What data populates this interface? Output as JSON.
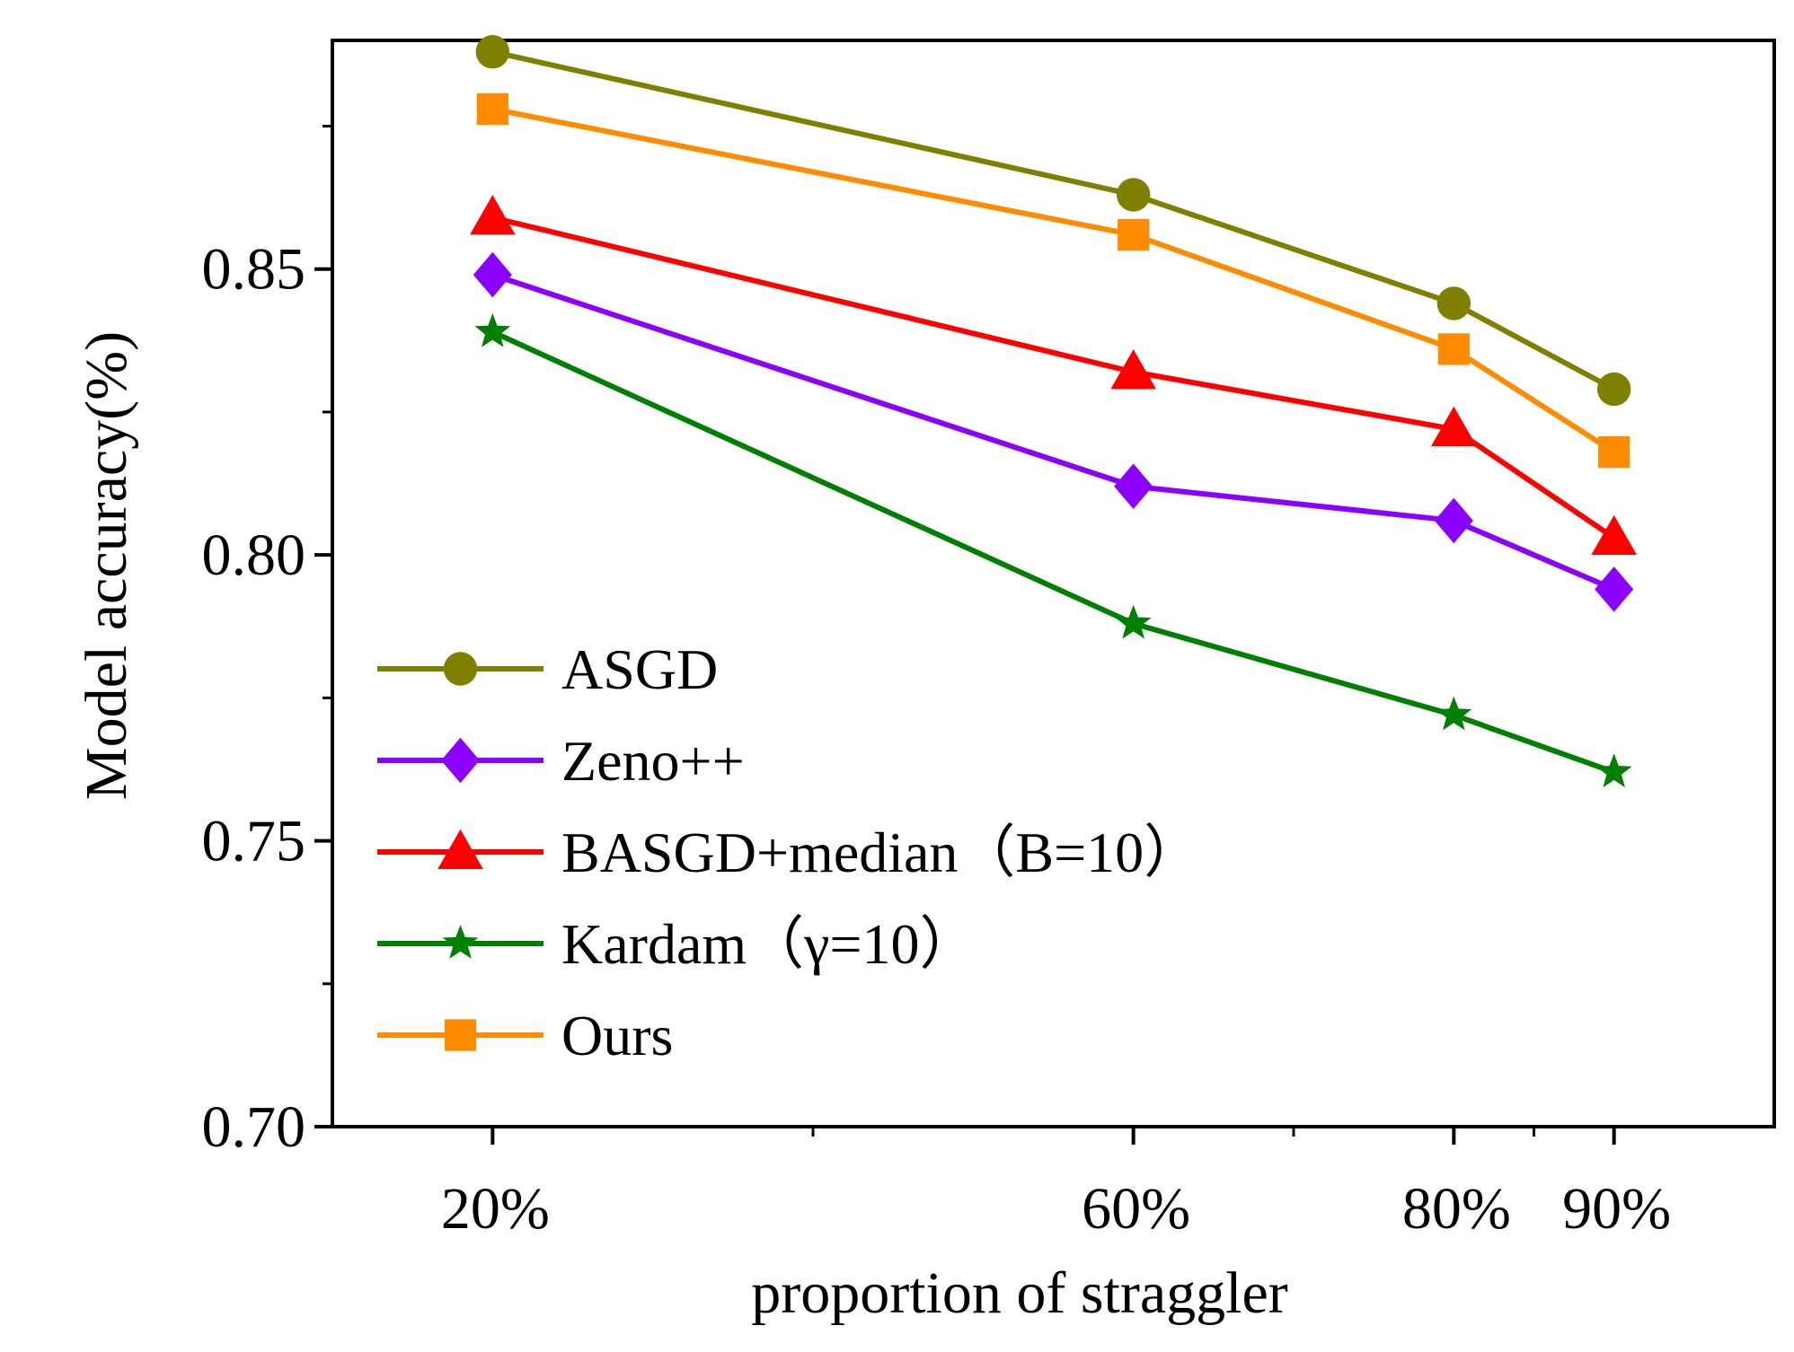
{
  "chart_data": {
    "type": "line",
    "title": "",
    "xlabel": "proportion of straggler",
    "ylabel": "Model accuracy(%)",
    "x": [
      20,
      60,
      80,
      90
    ],
    "x_tick_labels": [
      "20%",
      "60%",
      "80%",
      "90%"
    ],
    "xlim": [
      10,
      100
    ],
    "ylim": [
      0.7,
      0.89
    ],
    "y_ticks": [
      0.7,
      0.75,
      0.8,
      0.85
    ],
    "y_tick_labels": [
      "0.70",
      "0.75",
      "0.80",
      "0.85"
    ],
    "grid": false,
    "legend_position": "bottom-left",
    "series": [
      {
        "name": "ASGD",
        "values": [
          0.888,
          0.863,
          0.844,
          0.829
        ],
        "color": "#808000",
        "marker": "circle"
      },
      {
        "name": "Zeno++",
        "values": [
          0.849,
          0.812,
          0.806,
          0.794
        ],
        "color": "#8B00FF",
        "marker": "diamond"
      },
      {
        "name": "BASGD+median（B=10）",
        "values": [
          0.859,
          0.832,
          0.822,
          0.803
        ],
        "color": "#FF0000",
        "marker": "triangle"
      },
      {
        "name": "Kardam（γ=10）",
        "values": [
          0.839,
          0.788,
          0.772,
          0.762
        ],
        "color": "#008000",
        "marker": "star"
      },
      {
        "name": "Ours",
        "values": [
          0.878,
          0.856,
          0.836,
          0.818
        ],
        "color": "#FF8C00",
        "marker": "square"
      }
    ]
  }
}
